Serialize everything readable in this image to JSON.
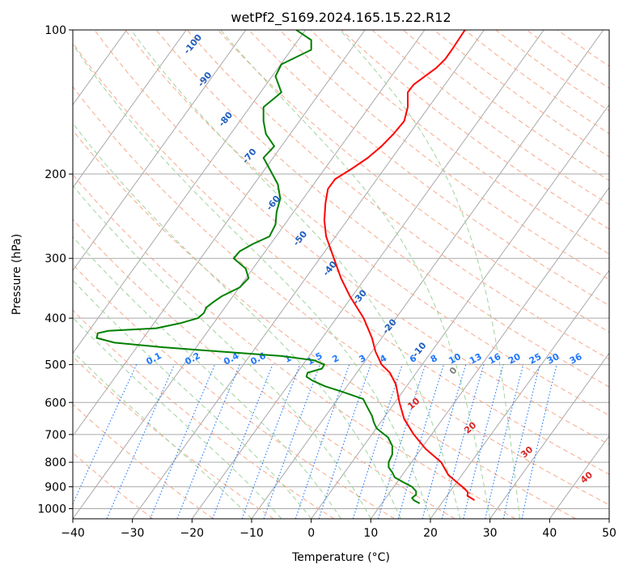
{
  "chart_data": {
    "type": "line",
    "title": "wetPf2_S169.2024.165.15.22.R12",
    "xlabel": "Temperature (°C)",
    "ylabel": "Pressure (hPa)",
    "xlim": [
      -40,
      50
    ],
    "ylim": [
      1050,
      100
    ],
    "y_scale": "log",
    "grid": true,
    "x_ticks": [
      -40,
      -30,
      -20,
      -10,
      0,
      10,
      20,
      30,
      40,
      50
    ],
    "y_ticks": [
      100,
      200,
      300,
      400,
      500,
      600,
      700,
      800,
      900,
      1000
    ],
    "x_tick_labels": [
      "−40",
      "−30",
      "−20",
      "−10",
      "0",
      "10",
      "20",
      "30",
      "40",
      "50"
    ],
    "y_tick_labels": [
      "100",
      "200",
      "300",
      "400",
      "500",
      "600",
      "700",
      "800",
      "900",
      "1000"
    ],
    "series": [
      {
        "color": "#ff0000",
        "p": [
          960,
          940,
          925,
          910,
          880,
          850,
          800,
          750,
          700,
          650,
          600,
          550,
          520,
          500,
          470,
          440,
          400,
          360,
          330,
          300,
          270,
          250,
          230,
          215,
          205,
          195,
          185,
          175,
          165,
          155,
          145,
          135,
          130,
          120,
          115,
          110,
          100
        ],
        "t": [
          27.4,
          26.2,
          26.3,
          25.8,
          24.4,
          23.0,
          21.8,
          19.2,
          17.2,
          15.6,
          14.8,
          14.2,
          13.2,
          11.8,
          10.8,
          10.2,
          8.8,
          6.5,
          5.0,
          3.8,
          2.5,
          2.2,
          2.4,
          2.8,
          4.0,
          6.8,
          9.5,
          11.8,
          13.8,
          15.6,
          16.2,
          16.2,
          17.2,
          21.0,
          22.5,
          23.6,
          25.8
        ]
      },
      {
        "color": "#008000",
        "p": [
          975,
          960,
          950,
          935,
          920,
          900,
          880,
          860,
          840,
          820,
          800,
          770,
          740,
          710,
          680,
          660,
          640,
          620,
          590,
          570,
          555,
          540,
          530,
          520,
          510,
          500,
          490,
          480,
          470,
          460,
          450,
          440,
          430,
          425,
          420,
          410,
          400,
          390,
          380,
          370,
          360,
          345,
          330,
          315,
          300,
          290,
          280,
          270,
          255,
          240,
          225,
          210,
          195,
          185,
          175,
          165,
          155,
          145,
          135,
          125,
          118,
          110,
          105,
          100
        ],
        "t": [
          18.2,
          17.2,
          16.9,
          17.6,
          17.6,
          16.9,
          15.4,
          14.0,
          13.6,
          13.0,
          13.0,
          13.6,
          13.6,
          12.9,
          11.0,
          10.5,
          10.2,
          9.6,
          8.7,
          5.2,
          2.3,
          0.2,
          -0.8,
          -0.6,
          1.8,
          2.2,
          0.5,
          -5.0,
          -15.0,
          -25.0,
          -33.0,
          -36.0,
          -35.8,
          -34.0,
          -26.0,
          -22.0,
          -19.0,
          -18.0,
          -17.6,
          -16.4,
          -15.0,
          -12.0,
          -10.5,
          -11.0,
          -13.0,
          -12.0,
          -9.8,
          -7.0,
          -6.0,
          -5.8,
          -5.2,
          -5.6,
          -7.0,
          -8.0,
          -6.2,
          -7.6,
          -8.0,
          -8.0,
          -5.0,
          -6.0,
          -5.0,
          0.0,
          0.0,
          -2.5
        ]
      }
    ],
    "dry_adiabats_c": [
      -30,
      -20,
      -10,
      0,
      10,
      20,
      30,
      40,
      50,
      60,
      70,
      80,
      90,
      100,
      110,
      120,
      130,
      140,
      150,
      160,
      170,
      180,
      190,
      200,
      210,
      220
    ],
    "dry_adiabat_labels": [
      {
        "text": "10",
        "t": 17.5,
        "p": 610
      },
      {
        "text": "20",
        "t": 27.0,
        "p": 685
      },
      {
        "text": "30",
        "t": 36.5,
        "p": 770
      },
      {
        "text": "40",
        "t": 46.5,
        "p": 870
      }
    ],
    "moist_adiabats_c": [
      -10,
      -5,
      0,
      5,
      10,
      15,
      20,
      25,
      30,
      35
    ],
    "moist_adiabat_labels": [
      {
        "text": "-100",
        "t": -19.5,
        "p": 108
      },
      {
        "text": "-90",
        "t": -17.5,
        "p": 128
      },
      {
        "text": "-80",
        "t": -14.0,
        "p": 155
      },
      {
        "text": "-70",
        "t": -10.0,
        "p": 185
      },
      {
        "text": "-60",
        "t": -6.0,
        "p": 232
      },
      {
        "text": "-50",
        "t": -1.5,
        "p": 275
      },
      {
        "text": "-40",
        "t": 3.5,
        "p": 318
      },
      {
        "text": "-30",
        "t": 8.5,
        "p": 365
      },
      {
        "text": "-20",
        "t": 13.5,
        "p": 420
      },
      {
        "text": "-10",
        "t": 18.5,
        "p": 470
      },
      {
        "text": "0",
        "t": 24.2,
        "p": 520
      }
    ],
    "mixing_ratios": [
      "0.1",
      "0.2",
      "0.4",
      "0.6",
      "1",
      "1.5",
      "2",
      "3",
      "4",
      "6",
      "8",
      "10",
      "13",
      "16",
      "20",
      "25",
      "30",
      "36"
    ],
    "mixing_ratio_label_t": [
      -22.0,
      -15.5,
      -9.0,
      -4.5,
      0.5,
      5.0,
      8.5,
      13.0,
      16.5,
      21.5,
      25.0,
      28.5,
      32.0,
      35.2,
      38.5,
      42.0,
      45.0,
      48.8
    ],
    "colors": {
      "temperature": "#ff0000",
      "dewpoint": "#008000",
      "isotherm": "#a9a9a9",
      "dry_adiabat": "#f7a98c",
      "moist_adiabat": "#9fd49f",
      "mixing_ratio": "#1f77ff",
      "moist_label": "#1f5fbf",
      "dry_label": "#d62728",
      "sat_line": "#d9bf9f"
    }
  }
}
